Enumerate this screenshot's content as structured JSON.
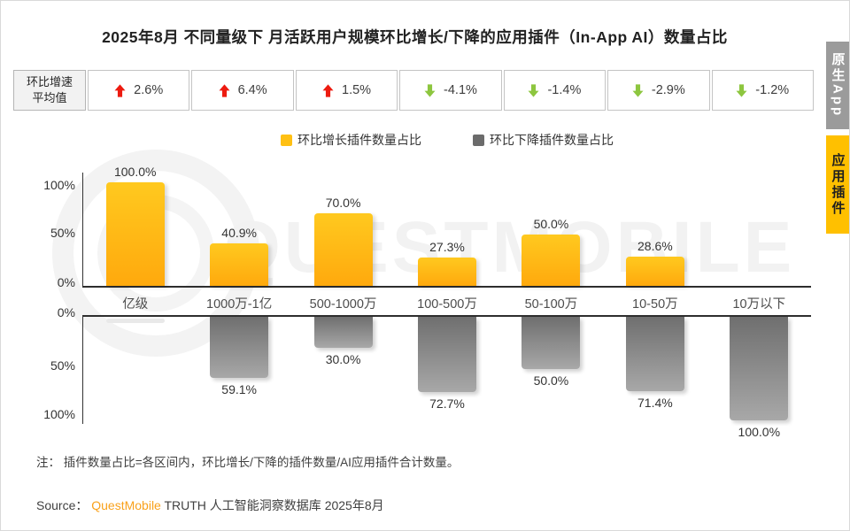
{
  "title": "2025年8月 不同量级下 月活跃用户规模环比增长/下降的应用插件（In-App AI）数量占比",
  "stats_row": {
    "label_line1": "环比增速",
    "label_line2": "平均值",
    "cells": [
      {
        "direction": "up",
        "value": "2.6%"
      },
      {
        "direction": "up",
        "value": "6.4%"
      },
      {
        "direction": "up",
        "value": "1.5%"
      },
      {
        "direction": "down",
        "value": "-4.1%"
      },
      {
        "direction": "down",
        "value": "-1.4%"
      },
      {
        "direction": "down",
        "value": "-2.9%"
      },
      {
        "direction": "down",
        "value": "-1.2%"
      }
    ]
  },
  "legend": [
    {
      "label": "环比增长插件数量占比",
      "color": "#FFC013"
    },
    {
      "label": "环比下降插件数量占比",
      "color": "#6B6B6B"
    }
  ],
  "chart_data": {
    "type": "bar",
    "title": "2025年8月 不同量级下 月活跃用户规模环比增长/下降的应用插件（In-App AI）数量占比",
    "categories": [
      "亿级",
      "1000万-1亿",
      "500-1000万",
      "100-500万",
      "50-100万",
      "10-50万",
      "10万以下"
    ],
    "series": [
      {
        "name": "环比增长插件数量占比",
        "values": [
          100.0,
          40.9,
          70.0,
          27.3,
          50.0,
          28.6,
          0
        ],
        "color": "#FFC013",
        "direction": "up"
      },
      {
        "name": "环比下降插件数量占比",
        "values": [
          0,
          59.1,
          30.0,
          72.7,
          50.0,
          71.4,
          100.0
        ],
        "color": "#8C8C8C",
        "direction": "down"
      }
    ],
    "avg_growth_rate_row": [
      "2.6%",
      "6.4%",
      "1.5%",
      "-4.1%",
      "-1.4%",
      "-2.9%",
      "-1.2%"
    ],
    "y_axis_ticks": [
      "0%",
      "50%",
      "100%"
    ],
    "ylim": [
      0,
      100
    ],
    "grid": false,
    "legend_position": "top",
    "value_label_format": "{value}%"
  },
  "note": "注： 插件数量占比=各区间内，环比增长/下降的插件数量/AI应用插件合计数量。",
  "source": {
    "prefix": "Source：",
    "brand": "QuestMobile",
    "suffix": " TRUTH 人工智能洞察数据库 2025年8月"
  },
  "side_tabs": [
    {
      "label": "原生App",
      "active": false,
      "color": "#9B9B9B"
    },
    {
      "label": "应用插件",
      "active": true,
      "color": "#FFC000"
    }
  ],
  "watermark": "QUESTMOBILE",
  "colors": {
    "growth_bar_top": "#FFC91F",
    "growth_bar_bottom": "#FFA90D",
    "decline_bar_top": "#6F6F6F",
    "decline_bar_bottom": "#A8A8A8",
    "up_arrow": "#ED1B10",
    "down_arrow": "#8DC63F",
    "brand_orange": "#F9A11B",
    "axis": "#2E2E2E"
  }
}
